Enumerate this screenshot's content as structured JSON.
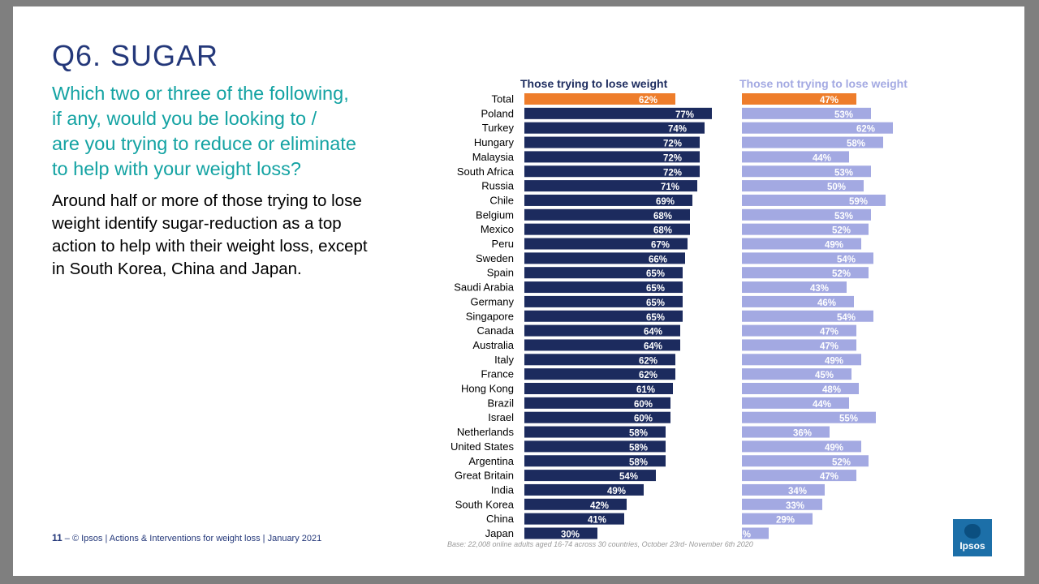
{
  "slide": {
    "title": "Q6. SUGAR",
    "question_lines": [
      "Which two or three of the following,",
      "if any, would you be looking to /",
      "are you trying to reduce or eliminate",
      "to help with your weight loss?"
    ],
    "description_lines": [
      "Around half or more of those trying to lose",
      "weight identify sugar-reduction as a top",
      "action to help with their weight loss, except",
      "in South Korea, China and Japan."
    ],
    "footer": {
      "page_number": "11",
      "dash": "–",
      "text": "© Ipsos | Actions & Interventions for weight loss | January 2021"
    },
    "base_note": "Base: 22,008 online adults aged 16-74 across 30 countries, October 23rd- November 6th 2020",
    "logo_text": "Ipsos"
  },
  "colors": {
    "title": "#24387a",
    "question": "#14a3a3",
    "trying_bar": "#1c2b5e",
    "not_trying_bar": "#a3a9e2",
    "total_bar": "#ee7d2b",
    "trying_legend": "#1c2b5e",
    "not_trying_legend": "#a3a9e2"
  },
  "chart_data": {
    "type": "bar",
    "orientation": "horizontal",
    "categories": [
      "Total",
      "Poland",
      "Turkey",
      "Hungary",
      "Malaysia",
      "South Africa",
      "Russia",
      "Chile",
      "Belgium",
      "Mexico",
      "Peru",
      "Sweden",
      "Spain",
      "Saudi Arabia",
      "Germany",
      "Singapore",
      "Canada",
      "Australia",
      "Italy",
      "France",
      "Hong Kong",
      "Brazil",
      "Israel",
      "Netherlands",
      "United States",
      "Argentina",
      "Great Britain",
      "India",
      "South Korea",
      "China",
      "Japan"
    ],
    "series": [
      {
        "name": "Those trying to lose weight",
        "values": [
          62,
          77,
          74,
          72,
          72,
          72,
          71,
          69,
          68,
          68,
          67,
          66,
          65,
          65,
          65,
          65,
          64,
          64,
          62,
          62,
          61,
          60,
          60,
          58,
          58,
          58,
          54,
          49,
          42,
          41,
          30
        ]
      },
      {
        "name": "Those not trying to lose weight",
        "values": [
          47,
          53,
          62,
          58,
          44,
          53,
          50,
          59,
          53,
          52,
          49,
          54,
          52,
          43,
          46,
          54,
          47,
          47,
          49,
          45,
          48,
          44,
          55,
          36,
          49,
          52,
          47,
          34,
          33,
          29,
          11
        ]
      }
    ],
    "value_suffix": "%",
    "highlight_category": "Total",
    "xlim": [
      0,
      100
    ]
  }
}
